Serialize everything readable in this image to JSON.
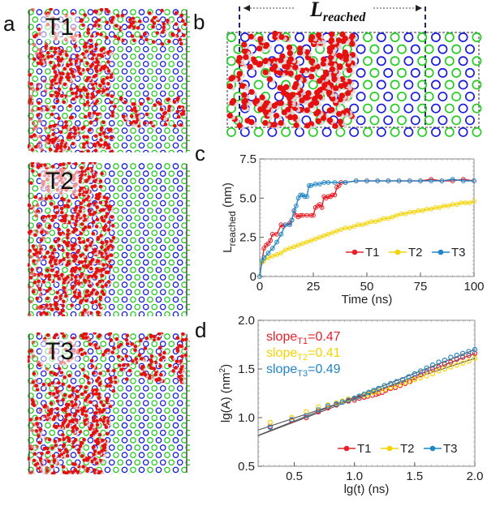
{
  "panels": {
    "a": {
      "letter": "a",
      "labels": [
        "T1",
        "T2",
        "T3"
      ]
    },
    "b": {
      "letter": "b",
      "annotation_main": "L",
      "annotation_sub": "reached"
    },
    "c": {
      "letter": "c"
    },
    "d": {
      "letter": "d"
    }
  },
  "colors": {
    "T1": "#e8202a",
    "T2": "#f5d300",
    "T3": "#1f86c8",
    "fit": "#555555",
    "oxygen": "#e51010",
    "hydrogen": "#d9d9d9",
    "nitrogen": "#1a1adc",
    "carbon": "#22cc22"
  },
  "chart_data": [
    {
      "id": "c",
      "type": "line",
      "title": "",
      "xlabel": "Time (ns)",
      "ylabel_main": "L",
      "ylabel_sub": "reached",
      "ylabel_unit": " (nm)",
      "xlim": [
        0,
        100
      ],
      "ylim": [
        0,
        7.5
      ],
      "xticks": [
        0,
        25,
        50,
        75,
        100
      ],
      "yticks": [
        0,
        2.5,
        5.0,
        7.5
      ],
      "xtick_labels": [
        "0",
        "25",
        "50",
        "75",
        "100"
      ],
      "ytick_labels": [
        "0",
        "2.5",
        "5.0",
        "7.5"
      ],
      "legend": {
        "position": "bottom-right",
        "entries": [
          "T1",
          "T2",
          "T3"
        ]
      },
      "series": [
        {
          "name": "T1",
          "x": [
            0,
            1,
            2,
            3,
            4,
            5,
            6,
            8,
            10,
            11,
            12,
            14,
            15,
            16,
            17,
            18,
            19,
            20,
            22,
            24,
            25,
            26,
            27,
            28,
            29,
            30,
            31,
            32,
            33,
            34,
            35,
            36,
            37,
            38,
            40,
            45,
            50,
            55,
            60,
            65,
            70,
            75,
            80,
            85,
            90,
            95,
            100
          ],
          "y": [
            0,
            0.9,
            1.8,
            2.0,
            2.1,
            2.3,
            2.7,
            2.7,
            3.3,
            3.2,
            3.3,
            3.4,
            3.6,
            4.2,
            3.9,
            3.8,
            3.9,
            3.9,
            3.9,
            3.9,
            3.9,
            4.4,
            4.5,
            4.6,
            4.4,
            5.1,
            5.0,
            5.1,
            5.1,
            5.2,
            5.2,
            5.7,
            5.8,
            6.0,
            6.0,
            6.1,
            6.1,
            6.1,
            6.1,
            6.1,
            6.1,
            6.1,
            6.2,
            6.1,
            6.1,
            6.2,
            6.1
          ]
        },
        {
          "name": "T2",
          "x": [
            0,
            1,
            2,
            4,
            6,
            8,
            10,
            12,
            14,
            16,
            18,
            20,
            22,
            24,
            26,
            28,
            30,
            32,
            34,
            36,
            38,
            40,
            42,
            44,
            46,
            48,
            50,
            52,
            54,
            56,
            58,
            60,
            62,
            64,
            66,
            68,
            70,
            72,
            74,
            76,
            78,
            80,
            82,
            84,
            86,
            88,
            90,
            92,
            94,
            96,
            98,
            100
          ],
          "y": [
            0,
            0.9,
            1.0,
            1.2,
            1.3,
            1.4,
            1.5,
            1.7,
            1.8,
            1.9,
            2.0,
            2.1,
            2.2,
            2.3,
            2.4,
            2.5,
            2.6,
            2.7,
            2.8,
            2.9,
            3.0,
            3.1,
            3.1,
            3.2,
            3.3,
            3.3,
            3.4,
            3.5,
            3.5,
            3.6,
            3.7,
            3.7,
            3.8,
            3.9,
            4.0,
            4.0,
            4.1,
            4.1,
            4.2,
            4.2,
            4.3,
            4.3,
            4.4,
            4.4,
            4.5,
            4.5,
            4.6,
            4.6,
            4.7,
            4.7,
            4.7,
            4.8
          ]
        },
        {
          "name": "T3",
          "x": [
            0,
            1,
            2,
            4,
            6,
            8,
            10,
            12,
            14,
            15,
            16,
            17,
            18,
            19,
            20,
            21,
            22,
            23,
            24,
            26,
            28,
            30,
            32,
            35,
            40,
            45,
            50,
            55,
            60,
            65,
            70,
            75,
            80,
            85,
            90,
            95,
            100
          ],
          "y": [
            0,
            1.0,
            1.2,
            1.5,
            1.8,
            2.2,
            2.7,
            3.3,
            3.3,
            3.6,
            4.2,
            4.5,
            5.0,
            5.2,
            5.2,
            5.1,
            5.1,
            5.8,
            5.8,
            5.9,
            5.9,
            6.0,
            6.0,
            6.0,
            6.0,
            6.1,
            6.1,
            6.1,
            6.1,
            6.1,
            6.1,
            6.1,
            6.1,
            6.1,
            6.2,
            6.1,
            6.1
          ]
        }
      ]
    },
    {
      "id": "d",
      "type": "scatter",
      "title": "",
      "xlabel": "lg(t) (ns)",
      "ylabel_main": "lg(A) (nm",
      "ylabel_sup": "2",
      "ylabel_end": ")",
      "xlim": [
        0.2,
        2.0
      ],
      "ylim": [
        0.5,
        2.0
      ],
      "xticks": [
        0.5,
        1.0,
        1.5,
        2.0
      ],
      "yticks": [
        0.5,
        1.0,
        1.5,
        2.0
      ],
      "xtick_labels": [
        "0.5",
        "1.0",
        "1.5",
        "2.0"
      ],
      "ytick_labels": [
        "0.5",
        "1.0",
        "1.5",
        "2.0"
      ],
      "legend": {
        "position": "bottom-right",
        "entries": [
          "T1",
          "T2",
          "T3"
        ]
      },
      "annotations": [
        {
          "series": "T1",
          "prefix": "slope",
          "sub": "T1",
          "value": "=0.47"
        },
        {
          "series": "T2",
          "prefix": "slope",
          "sub": "T2",
          "value": "=0.41"
        },
        {
          "series": "T3",
          "prefix": "slope",
          "sub": "T3",
          "value": "=0.49"
        }
      ],
      "fits": [
        {
          "name": "T1",
          "slope": 0.47,
          "intercept": 0.72
        },
        {
          "name": "T2",
          "slope": 0.41,
          "intercept": 0.79
        },
        {
          "name": "T3",
          "slope": 0.49,
          "intercept": 0.72
        }
      ],
      "series": [
        {
          "name": "T1",
          "x": [
            0.3,
            0.48,
            0.6,
            0.7,
            0.78,
            0.85,
            0.9,
            0.95,
            1.0,
            1.04,
            1.08,
            1.11,
            1.15,
            1.18,
            1.2,
            1.23,
            1.26,
            1.3,
            1.34,
            1.38,
            1.42,
            1.46,
            1.5,
            1.55,
            1.6,
            1.65,
            1.7,
            1.75,
            1.8,
            1.85,
            1.9,
            1.95,
            2.0
          ],
          "y": [
            0.91,
            0.97,
            1.0,
            1.06,
            1.1,
            1.13,
            1.16,
            1.17,
            1.18,
            1.2,
            1.21,
            1.22,
            1.23,
            1.24,
            1.25,
            1.26,
            1.28,
            1.3,
            1.31,
            1.33,
            1.35,
            1.37,
            1.41,
            1.44,
            1.47,
            1.5,
            1.52,
            1.55,
            1.57,
            1.6,
            1.62,
            1.64,
            1.66
          ]
        },
        {
          "name": "T2",
          "x": [
            0.3,
            0.48,
            0.6,
            0.7,
            0.78,
            0.85,
            0.9,
            0.95,
            1.0,
            1.04,
            1.08,
            1.12,
            1.16,
            1.2,
            1.25,
            1.3,
            1.35,
            1.4,
            1.45,
            1.5,
            1.55,
            1.6,
            1.65,
            1.7,
            1.75,
            1.8,
            1.85,
            1.9,
            1.95,
            2.0
          ],
          "y": [
            0.95,
            1.0,
            1.06,
            1.11,
            1.13,
            1.15,
            1.17,
            1.19,
            1.2,
            1.22,
            1.23,
            1.24,
            1.26,
            1.27,
            1.29,
            1.31,
            1.33,
            1.35,
            1.37,
            1.39,
            1.41,
            1.43,
            1.45,
            1.48,
            1.5,
            1.52,
            1.54,
            1.56,
            1.58,
            1.61
          ]
        },
        {
          "name": "T3",
          "x": [
            0.3,
            0.48,
            0.6,
            0.7,
            0.78,
            0.85,
            0.9,
            0.95,
            1.0,
            1.04,
            1.08,
            1.12,
            1.16,
            1.2,
            1.25,
            1.3,
            1.35,
            1.4,
            1.45,
            1.5,
            1.55,
            1.6,
            1.65,
            1.7,
            1.75,
            1.8,
            1.85,
            1.9,
            1.95,
            2.0
          ],
          "y": [
            0.9,
            0.98,
            1.02,
            1.08,
            1.12,
            1.14,
            1.16,
            1.18,
            1.2,
            1.22,
            1.24,
            1.26,
            1.28,
            1.3,
            1.33,
            1.35,
            1.37,
            1.39,
            1.42,
            1.45,
            1.48,
            1.51,
            1.54,
            1.57,
            1.59,
            1.62,
            1.64,
            1.66,
            1.68,
            1.7
          ]
        }
      ]
    }
  ]
}
